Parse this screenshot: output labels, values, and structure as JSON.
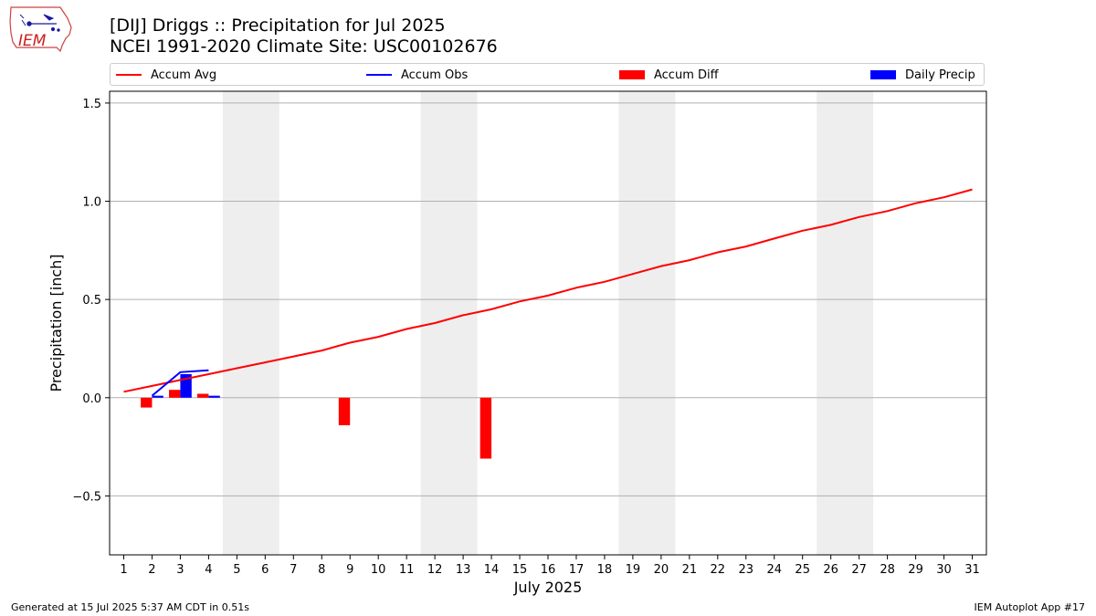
{
  "header": {
    "title_line1": "[DIJ] Driggs :: Precipitation for Jul 2025",
    "title_line2": "NCEI 1991-2020 Climate Site: USC00102676",
    "logo_text": "IEM"
  },
  "footer": {
    "generated": "Generated at 15 Jul 2025 5:37 AM CDT in 0.51s",
    "app": "IEM Autoplot App #17"
  },
  "colors": {
    "accum_avg": "#ff0000",
    "accum_obs": "#0000ff",
    "accum_diff": "#ff0000",
    "daily_precip": "#0000ff",
    "weekend_shade": "#eeeeee",
    "grid": "#b0b0b0"
  },
  "chart_data": {
    "type": "line",
    "title": "[DIJ] Driggs :: Precipitation for Jul 2025",
    "subtitle": "NCEI 1991-2020 Climate Site: USC00102676",
    "xlabel": "July 2025",
    "ylabel": "Precipitation [inch]",
    "xlim": [
      0.5,
      31.5
    ],
    "ylim": [
      -0.8,
      1.56
    ],
    "yticks": [
      -0.5,
      0.0,
      0.5,
      1.0,
      1.5
    ],
    "ytick_labels": [
      "−0.5",
      "0.0",
      "0.5",
      "1.0",
      "1.5"
    ],
    "x": [
      1,
      2,
      3,
      4,
      5,
      6,
      7,
      8,
      9,
      10,
      11,
      12,
      13,
      14,
      15,
      16,
      17,
      18,
      19,
      20,
      21,
      22,
      23,
      24,
      25,
      26,
      27,
      28,
      29,
      30,
      31
    ],
    "grid": "horizontal",
    "legend_position": "top",
    "weekend_shading": [
      [
        4.5,
        6.5
      ],
      [
        11.5,
        13.5
      ],
      [
        18.5,
        20.5
      ],
      [
        25.5,
        27.5
      ]
    ],
    "series": [
      {
        "name": "Accum Avg",
        "kind": "line",
        "color": "#ff0000",
        "x": [
          1,
          2,
          3,
          4,
          5,
          6,
          7,
          8,
          9,
          10,
          11,
          12,
          13,
          14,
          15,
          16,
          17,
          18,
          19,
          20,
          21,
          22,
          23,
          24,
          25,
          26,
          27,
          28,
          29,
          30,
          31
        ],
        "values": [
          0.03,
          0.06,
          0.09,
          0.12,
          0.15,
          0.18,
          0.21,
          0.24,
          0.28,
          0.31,
          0.35,
          0.38,
          0.42,
          0.45,
          0.49,
          0.52,
          0.56,
          0.59,
          0.63,
          0.67,
          0.7,
          0.74,
          0.77,
          0.81,
          0.85,
          0.88,
          0.92,
          0.95,
          0.99,
          1.02,
          1.06
        ]
      },
      {
        "name": "Accum Obs",
        "kind": "line",
        "color": "#0000ff",
        "x": [
          2,
          3,
          4
        ],
        "values": [
          0.01,
          0.13,
          0.14
        ]
      },
      {
        "name": "Accum Diff",
        "kind": "bar",
        "color": "#ff0000",
        "x": [
          1,
          2,
          3,
          4,
          9,
          14
        ],
        "values": [
          0.0,
          -0.05,
          0.04,
          0.02,
          -0.14,
          -0.31
        ]
      },
      {
        "name": "Daily Precip",
        "kind": "bar",
        "color": "#0000ff",
        "x": [
          2,
          3,
          4
        ],
        "values": [
          0.01,
          0.12,
          0.01
        ]
      }
    ]
  }
}
